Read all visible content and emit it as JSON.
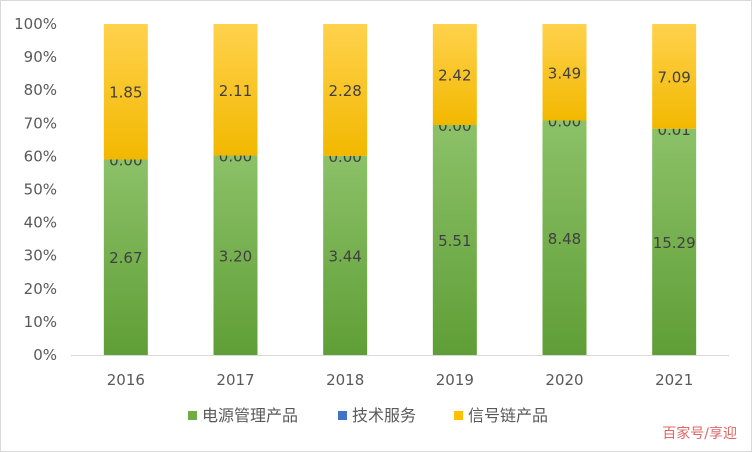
{
  "chart_data": {
    "type": "bar",
    "stacked": true,
    "normalized_percent": true,
    "categories": [
      "2016",
      "2017",
      "2018",
      "2019",
      "2020",
      "2021"
    ],
    "series": [
      {
        "name": "电源管理产品",
        "values": [
          2.67,
          3.2,
          3.44,
          5.51,
          8.48,
          15.29
        ],
        "labels": [
          "2.67",
          "3.20",
          "3.44",
          "5.51",
          "8.48",
          "15.29"
        ],
        "color": "#70ad47"
      },
      {
        "name": "技术服务",
        "values": [
          0.0,
          0.0,
          0.0,
          0.0,
          0.0,
          0.01
        ],
        "labels": [
          "0.00",
          "0.00",
          "0.00",
          "0.00",
          "0.00",
          "0.01"
        ],
        "color": "#4472c4"
      },
      {
        "name": "信号链产品",
        "values": [
          1.85,
          2.11,
          2.28,
          2.42,
          3.49,
          7.09
        ],
        "labels": [
          "1.85",
          "2.11",
          "2.28",
          "2.42",
          "3.49",
          "7.09"
        ],
        "color": "#ffc000"
      }
    ],
    "y_ticks": [
      "0%",
      "10%",
      "20%",
      "30%",
      "40%",
      "50%",
      "60%",
      "70%",
      "80%",
      "90%",
      "100%"
    ],
    "ylim": [
      0,
      100
    ],
    "grid": false,
    "legend_position": "bottom",
    "title": "",
    "xlabel": "",
    "ylabel": ""
  },
  "watermark": "百家号/享迎"
}
